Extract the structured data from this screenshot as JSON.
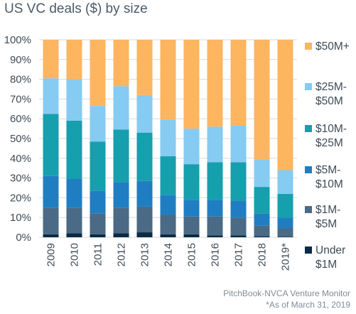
{
  "title": "US VC deals ($) by size",
  "source_line1": "PitchBook-NVCA Venture Monitor",
  "source_line2": "*As of March 31, 2019",
  "chart_data": {
    "type": "bar",
    "stacked": true,
    "title": "US VC deals ($) by size",
    "xlabel": "",
    "ylabel": "",
    "ylim": [
      0,
      100
    ],
    "yticks": [
      "0%",
      "10%",
      "20%",
      "30%",
      "40%",
      "50%",
      "60%",
      "70%",
      "80%",
      "90%",
      "100%"
    ],
    "categories": [
      "2009",
      "2010",
      "2011",
      "2012",
      "2013",
      "2014",
      "2015",
      "2016",
      "2017",
      "2018",
      "2019*"
    ],
    "legend_position": "right",
    "series": [
      {
        "name": "Under $1M",
        "color": "#0b2a45",
        "values": [
          1.5,
          2,
          1.5,
          2,
          2.5,
          1.5,
          1.5,
          1,
          1,
          0.5,
          0.3
        ]
      },
      {
        "name": "$1M-$5M",
        "color": "#4a6a85",
        "values": [
          13.5,
          13,
          10.5,
          13,
          13,
          10,
          9,
          9.5,
          9,
          5.5,
          4.2
        ]
      },
      {
        "name": "$5M-$10M",
        "color": "#1f7ec2",
        "values": [
          16,
          14.5,
          11.5,
          13,
          13,
          10,
          8.5,
          8.5,
          8.5,
          6,
          5.5
        ]
      },
      {
        "name": "$10M-$25M",
        "color": "#169fad",
        "values": [
          31.5,
          29.5,
          25,
          26.5,
          24.5,
          19.5,
          18,
          19,
          19.5,
          13.5,
          12
        ]
      },
      {
        "name": "$25M-$50M",
        "color": "#85cbf2",
        "values": [
          18,
          21,
          18,
          22,
          19,
          18.5,
          18,
          18,
          18.5,
          14,
          12
        ]
      },
      {
        "name": "$50M+",
        "color": "#fdb560",
        "values": [
          19.5,
          20,
          33.5,
          23.5,
          28,
          40.5,
          45,
          44,
          43.5,
          60.5,
          66
        ]
      }
    ]
  },
  "legend": [
    {
      "line1": "$50M+",
      "line2": ""
    },
    {
      "line1": "$25M-",
      "line2": "$50M"
    },
    {
      "line1": "$10M-",
      "line2": "$25M"
    },
    {
      "line1": "$5M-",
      "line2": "$10M"
    },
    {
      "line1": "$1M-",
      "line2": "$5M"
    },
    {
      "line1": "Under",
      "line2": "$1M"
    }
  ]
}
